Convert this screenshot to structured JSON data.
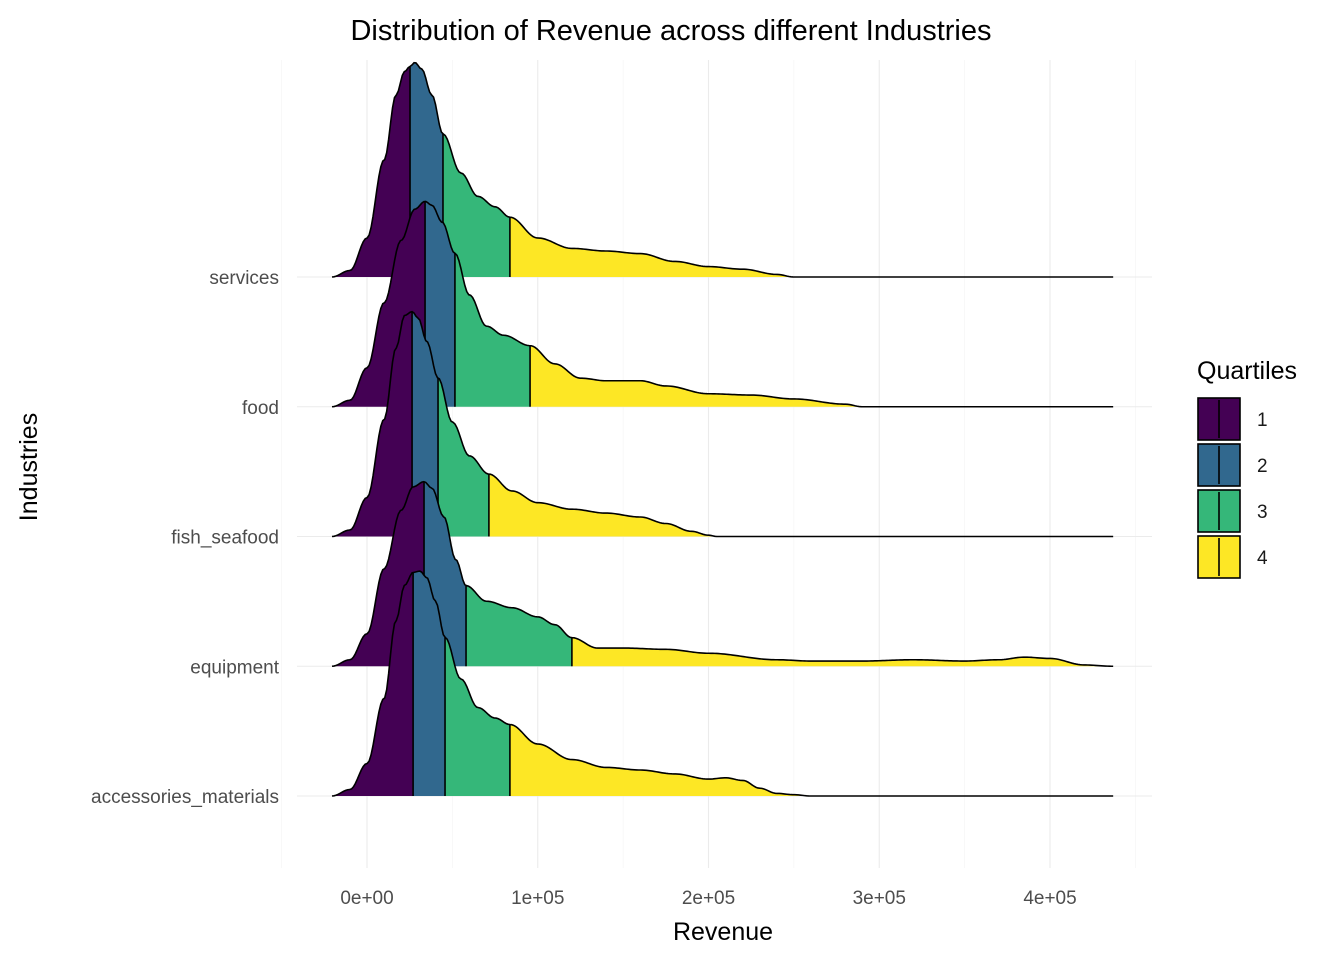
{
  "chart_data": {
    "type": "area",
    "subtype": "ridgeline-density-with-quartiles",
    "title": "Distribution of Revenue across different Industries",
    "xlabel": "Revenue",
    "ylabel": "Industries",
    "xlim": [
      -20500,
      437000
    ],
    "x_ticks": [
      0,
      100000,
      200000,
      300000,
      400000
    ],
    "x_tick_labels": [
      "0e+00",
      "1e+05",
      "2e+05",
      "3e+05",
      "4e+05"
    ],
    "grid": true,
    "legend": {
      "title": "Quartiles",
      "position": "right",
      "entries": [
        {
          "label": "1",
          "color": "#440154"
        },
        {
          "label": "2",
          "color": "#31688E"
        },
        {
          "label": "3",
          "color": "#35B779"
        },
        {
          "label": "4",
          "color": "#FDE725"
        }
      ]
    },
    "categories": [
      "accessories_materials",
      "equipment",
      "fish_seafood",
      "food",
      "services"
    ],
    "series": [
      {
        "name": "accessories_materials",
        "quartile_cuts": [
          27000,
          45700,
          83700
        ],
        "density_x": [
          -20500,
          -10000,
          0,
          10000,
          17000,
          22000,
          27000,
          31000,
          35000,
          40000,
          45700,
          55000,
          65000,
          75000,
          83700,
          100000,
          120000,
          140000,
          160000,
          180000,
          200000,
          210000,
          220000,
          230000,
          240000,
          250000,
          260000,
          300000,
          437000
        ],
        "density_y": [
          0.0,
          0.05,
          0.25,
          0.75,
          1.35,
          1.62,
          1.72,
          1.73,
          1.68,
          1.5,
          1.22,
          0.9,
          0.68,
          0.6,
          0.55,
          0.4,
          0.28,
          0.22,
          0.2,
          0.17,
          0.13,
          0.14,
          0.12,
          0.06,
          0.02,
          0.01,
          0.0,
          0.0,
          0.0
        ]
      },
      {
        "name": "equipment",
        "quartile_cuts": [
          33400,
          58000,
          120000
        ],
        "density_x": [
          -20500,
          -10000,
          0,
          10000,
          20000,
          27000,
          33400,
          38000,
          45000,
          52000,
          58000,
          70000,
          85000,
          100000,
          110000,
          120000,
          135000,
          150000,
          175000,
          200000,
          240000,
          260000,
          290000,
          320000,
          350000,
          370000,
          385000,
          400000,
          420000,
          437000
        ],
        "density_y": [
          0.0,
          0.05,
          0.25,
          0.75,
          1.2,
          1.38,
          1.42,
          1.37,
          1.15,
          0.82,
          0.62,
          0.5,
          0.45,
          0.38,
          0.32,
          0.22,
          0.14,
          0.14,
          0.13,
          0.1,
          0.05,
          0.04,
          0.04,
          0.05,
          0.04,
          0.05,
          0.07,
          0.06,
          0.01,
          0.0
        ]
      },
      {
        "name": "fish_seafood",
        "quartile_cuts": [
          26400,
          41600,
          71400
        ],
        "density_x": [
          -20500,
          -10000,
          0,
          10000,
          17000,
          22000,
          26400,
          30000,
          35000,
          41600,
          50000,
          60000,
          71400,
          85000,
          100000,
          120000,
          140000,
          160000,
          175000,
          190000,
          200000,
          205000,
          437000
        ],
        "density_y": [
          0.0,
          0.05,
          0.3,
          0.9,
          1.45,
          1.7,
          1.73,
          1.68,
          1.5,
          1.22,
          0.88,
          0.62,
          0.48,
          0.35,
          0.26,
          0.21,
          0.18,
          0.15,
          0.1,
          0.04,
          0.01,
          0.0,
          0.0
        ]
      },
      {
        "name": "food",
        "quartile_cuts": [
          34000,
          51500,
          95500
        ],
        "density_x": [
          -20500,
          -10000,
          0,
          10000,
          20000,
          28000,
          34000,
          38000,
          44000,
          51500,
          60000,
          70000,
          80000,
          95500,
          110000,
          125000,
          140000,
          160000,
          175000,
          200000,
          225000,
          250000,
          280000,
          290000,
          437000
        ],
        "density_y": [
          0.0,
          0.05,
          0.3,
          0.8,
          1.28,
          1.52,
          1.58,
          1.55,
          1.42,
          1.18,
          0.86,
          0.62,
          0.55,
          0.47,
          0.33,
          0.22,
          0.2,
          0.2,
          0.16,
          0.1,
          0.09,
          0.06,
          0.02,
          0.0,
          0.0
        ]
      },
      {
        "name": "services",
        "quartile_cuts": [
          25200,
          44500,
          83700
        ],
        "density_x": [
          -20500,
          -10000,
          0,
          10000,
          17000,
          22000,
          25200,
          28000,
          32000,
          38000,
          44500,
          55000,
          65000,
          75000,
          83700,
          100000,
          120000,
          140000,
          160000,
          180000,
          200000,
          220000,
          240000,
          250000,
          437000
        ],
        "density_y": [
          0.0,
          0.05,
          0.3,
          0.9,
          1.4,
          1.58,
          1.62,
          1.65,
          1.6,
          1.4,
          1.1,
          0.8,
          0.62,
          0.54,
          0.46,
          0.3,
          0.22,
          0.2,
          0.18,
          0.12,
          0.08,
          0.06,
          0.02,
          0.0,
          0.0
        ]
      }
    ]
  }
}
